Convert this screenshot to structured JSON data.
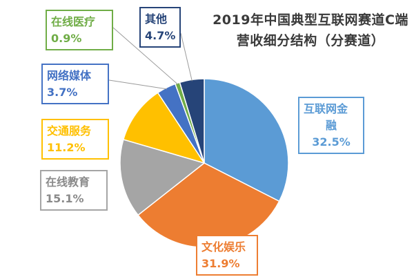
{
  "chart_data": {
    "type": "pie",
    "title": "2019年中国典型互联网赛道C端营收细分结构（分赛道）",
    "title_lines": [
      "2019年中国典型互联网赛道C端",
      "营收细分结构（分赛道）"
    ],
    "slices": [
      {
        "label": "互联网金融",
        "label_lines": [
          "互联网金",
          "融"
        ],
        "value": 32.5,
        "value_label": "32.5%",
        "color": "#5b9bd5"
      },
      {
        "label": "文化娱乐",
        "label_lines": [
          "文化娱乐"
        ],
        "value": 31.9,
        "value_label": "31.9%",
        "color": "#ed7d31"
      },
      {
        "label": "在线教育",
        "label_lines": [
          "在线教育"
        ],
        "value": 15.1,
        "value_label": "15.1%",
        "color": "#a5a5a5"
      },
      {
        "label": "交通服务",
        "label_lines": [
          "交通服务"
        ],
        "value": 11.2,
        "value_label": "11.2%",
        "color": "#ffc000"
      },
      {
        "label": "网络媒体",
        "label_lines": [
          "网络媒体"
        ],
        "value": 3.7,
        "value_label": "3.7%",
        "color": "#4472c4"
      },
      {
        "label": "在线医疗",
        "label_lines": [
          "在线医疗"
        ],
        "value": 0.9,
        "value_label": "0.9%",
        "color": "#70ad47"
      },
      {
        "label": "其他",
        "label_lines": [
          "其他"
        ],
        "value": 4.7,
        "value_label": "4.7%",
        "color": "#264478"
      }
    ],
    "start_angle": "12 o'clock",
    "direction": "clockwise",
    "legend": "none (callout labels)"
  }
}
